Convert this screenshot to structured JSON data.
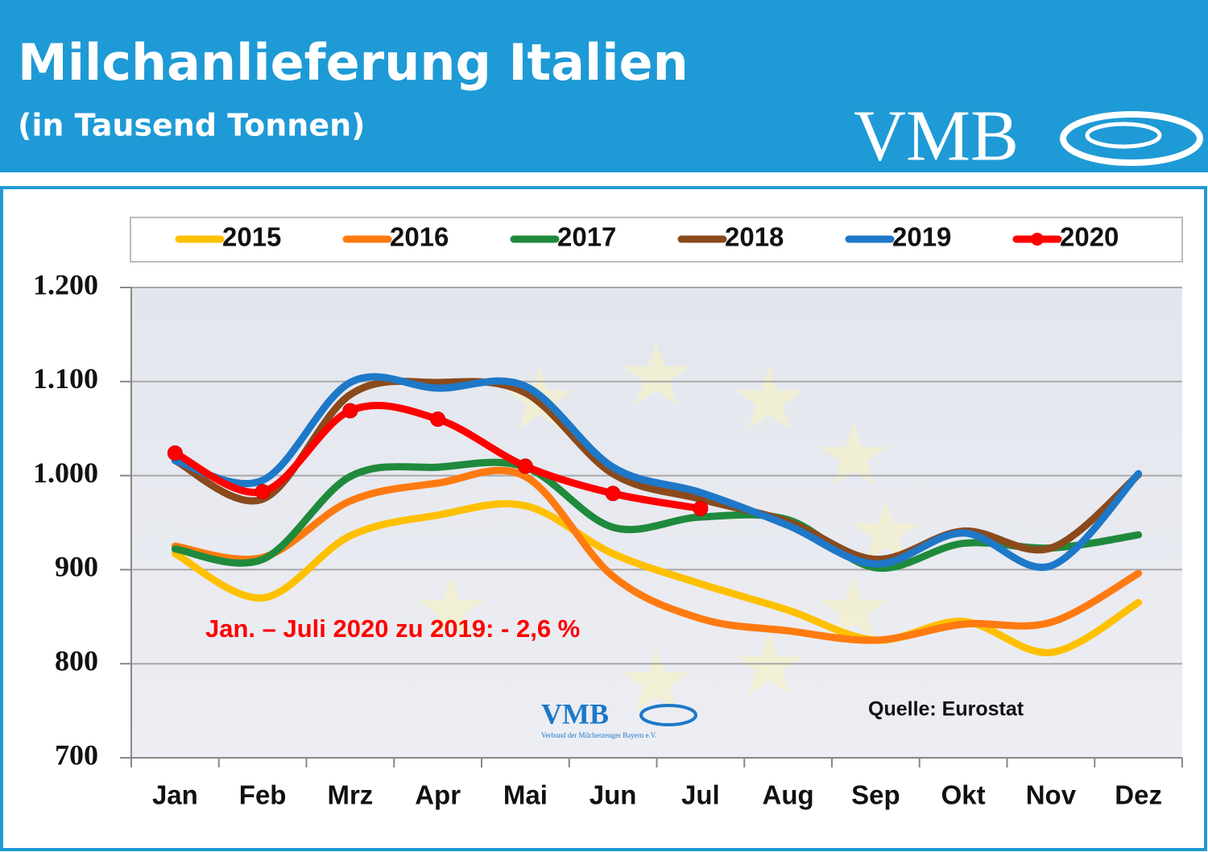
{
  "chart_data": {
    "type": "line",
    "title": "Milchanlieferung Italien",
    "subtitle": "(in Tausend Tonnen)",
    "logo": "VMB",
    "logo_caption": "Verbund der Milcherzeuger Bayern e.V.",
    "annotation": "Jan. – Juli 2020 zu 2019: - 2,6 %",
    "source": "Quelle: Eurostat",
    "categories": [
      "Jan",
      "Feb",
      "Mrz",
      "Apr",
      "Mai",
      "Jun",
      "Jul",
      "Aug",
      "Sep",
      "Okt",
      "Nov",
      "Dez"
    ],
    "ylim": [
      700,
      1200
    ],
    "yticks": [
      700,
      800,
      900,
      {
        "value": 1000,
        "label": "1.000"
      },
      {
        "value": 1100,
        "label": "1.100"
      },
      {
        "value": 1200,
        "label": "1.200"
      }
    ],
    "grid": true,
    "legend": "top",
    "series": [
      {
        "name": "2015",
        "color": "#ffc000",
        "values": [
          917,
          870,
          936,
          958,
          968,
          917,
          885,
          857,
          825,
          845,
          812,
          865
        ]
      },
      {
        "name": "2016",
        "color": "#ff7a10",
        "values": [
          925,
          913,
          973,
          992,
          999,
          893,
          848,
          835,
          825,
          842,
          844,
          896
        ]
      },
      {
        "name": "2017",
        "color": "#1f8a3c",
        "values": [
          922,
          911,
          999,
          1009,
          1009,
          945,
          956,
          953,
          902,
          928,
          923,
          937
        ]
      },
      {
        "name": "2018",
        "color": "#8b4a1c",
        "values": [
          1016,
          975,
          1086,
          1099,
          1088,
          1002,
          975,
          951,
          911,
          941,
          923,
          1001
        ]
      },
      {
        "name": "2019",
        "color": "#1e78c8",
        "values": [
          1016,
          995,
          1099,
          1093,
          1095,
          1009,
          982,
          947,
          906,
          939,
          904,
          1002
        ]
      },
      {
        "name": "2020",
        "color": "#ff0000",
        "markers": true,
        "values": [
          1024,
          983,
          1069,
          1060,
          1010,
          981,
          965,
          null,
          null,
          null,
          null,
          null
        ]
      }
    ]
  }
}
